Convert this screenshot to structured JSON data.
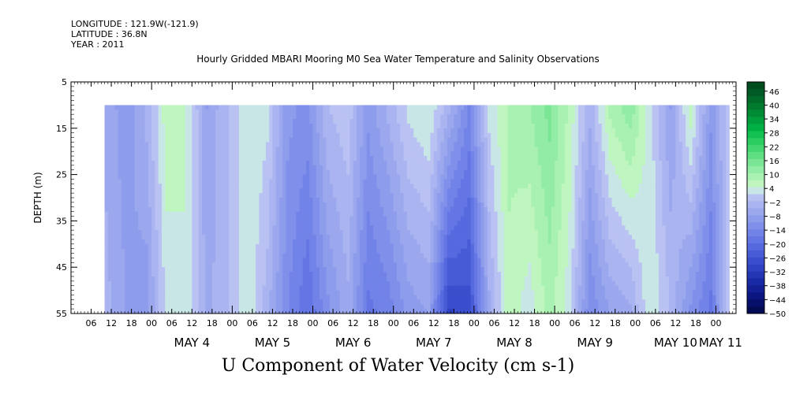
{
  "header": {
    "longitude": "LONGITUDE : 121.9W(-121.9)",
    "latitude": "LATITUDE : 36.8N",
    "year": "YEAR : 2011"
  },
  "chart_data": {
    "type": "heatmap",
    "title": "Hourly Gridded MBARI Mooring M0 Sea Water Temperature and Salinity Observations",
    "bottom_title": "U Component of Water Velocity (cm s-1)",
    "ylabel": "DEPTH (m)",
    "ylim": [
      55,
      5
    ],
    "y_ticks": [
      5,
      15,
      25,
      35,
      45,
      55
    ],
    "data_depth_range": [
      10,
      55
    ],
    "x_start": "2011-05-03 00:00",
    "x_end": "2011-05-11 06:00",
    "data_time_range": [
      "2011-05-03 10:00",
      "2011-05-11 04:00"
    ],
    "hour_tick_labels": [
      "06",
      "12",
      "18",
      "00",
      "06",
      "12",
      "18",
      "00",
      "06",
      "12",
      "18",
      "00",
      "06",
      "12",
      "18",
      "00",
      "06",
      "12",
      "18",
      "00",
      "06",
      "12",
      "18",
      "00",
      "06",
      "12",
      "18",
      "00",
      "06",
      "12",
      "18",
      "00"
    ],
    "day_labels": [
      "MAY  4",
      "MAY  5",
      "MAY  6",
      "MAY  7",
      "MAY  8",
      "MAY  9",
      "MAY 10",
      "MAY 11"
    ],
    "colorbar": {
      "ticks": [
        46,
        40,
        34,
        28,
        22,
        16,
        10,
        4,
        -2,
        -8,
        -14,
        -20,
        -26,
        -32,
        -38,
        -44,
        -50
      ],
      "levels": [
        50,
        46,
        43,
        40,
        37,
        34,
        31,
        28,
        25,
        22,
        19,
        16,
        13,
        10,
        7,
        4,
        1,
        -2,
        -5,
        -8,
        -11,
        -14,
        -17,
        -20,
        -23,
        -26,
        -29,
        -32,
        -35,
        -38,
        -41,
        -44,
        -47,
        -50
      ],
      "colors": [
        "#004c1f",
        "#005a23",
        "#006a28",
        "#007b2e",
        "#008c35",
        "#009e3c",
        "#00b044",
        "#12c152",
        "#2bcd60",
        "#44d670",
        "#5fde82",
        "#7ae594",
        "#93eca6",
        "#a9f1b3",
        "#bff5bf",
        "#c9e6e6",
        "#b9c2f2",
        "#aab4f0",
        "#9ca8ee",
        "#8e9cec",
        "#8090ea",
        "#7283e8",
        "#6476e4",
        "#5669de",
        "#485bd6",
        "#3b4ecd",
        "#2f42c2",
        "#2436b4",
        "#1a2aa4",
        "#122093",
        "#0b1680",
        "#06106a",
        "#030a54"
      ]
    },
    "velocity_profile_cm_s": {
      "times": [
        "05-03 10:00",
        "05-03 16:00",
        "05-03 22:00",
        "05-04 04:00",
        "05-04 10:00",
        "05-04 16:00",
        "05-04 22:00",
        "05-05 04:00",
        "05-05 10:00",
        "05-05 16:00",
        "05-05 22:00",
        "05-06 04:00",
        "05-06 10:00",
        "05-06 16:00",
        "05-06 22:00",
        "05-07 04:00",
        "05-07 10:00",
        "05-07 16:00",
        "05-07 22:00",
        "05-08 04:00",
        "05-08 10:00",
        "05-08 16:00",
        "05-08 22:00",
        "05-09 04:00",
        "05-09 10:00",
        "05-09 16:00",
        "05-09 22:00",
        "05-10 04:00",
        "05-10 10:00",
        "05-10 16:00",
        "05-10 22:00",
        "05-11 04:00"
      ],
      "shallow": [
        -6,
        -10,
        -4,
        6,
        4,
        -8,
        -2,
        4,
        2,
        -10,
        -12,
        -2,
        0,
        -10,
        -4,
        2,
        4,
        -4,
        -14,
        2,
        8,
        10,
        14,
        6,
        -4,
        8,
        12,
        2,
        -8,
        6,
        -10,
        2
      ],
      "deep": [
        -4,
        -8,
        -10,
        2,
        4,
        -6,
        -2,
        4,
        -4,
        -14,
        -20,
        -12,
        -6,
        -18,
        -16,
        -10,
        -8,
        -30,
        -28,
        -6,
        6,
        2,
        8,
        2,
        -14,
        -8,
        -6,
        4,
        -2,
        -12,
        -18,
        2
      ]
    }
  }
}
